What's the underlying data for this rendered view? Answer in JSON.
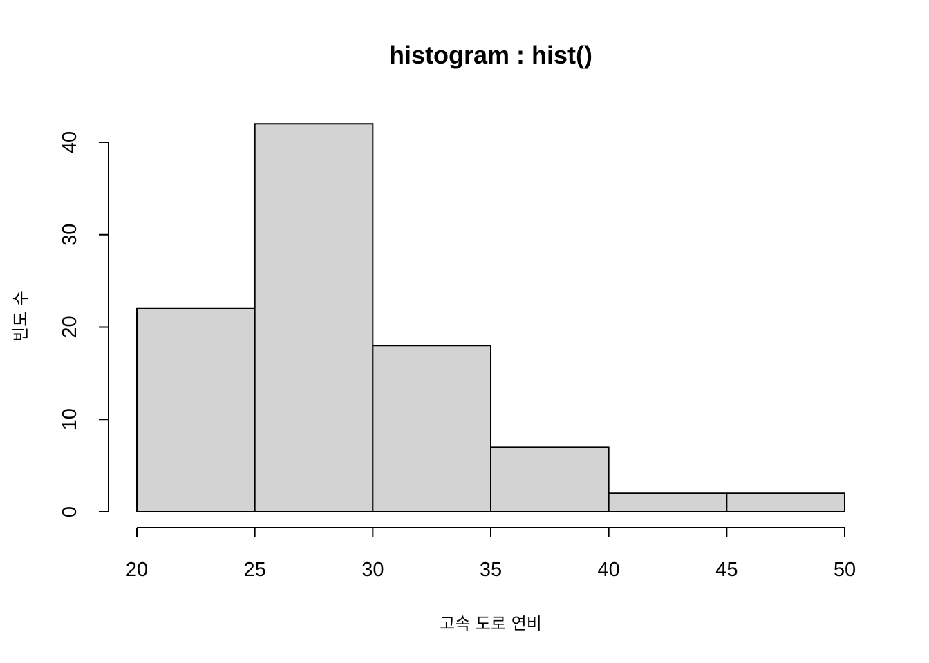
{
  "chart_data": {
    "type": "bar",
    "title": "histogram : hist()",
    "xlabel": "고속 도로 연비",
    "ylabel": "빈도 수",
    "bins": [
      {
        "from": 20,
        "to": 25,
        "count": 22
      },
      {
        "from": 25,
        "to": 30,
        "count": 42
      },
      {
        "from": 30,
        "to": 35,
        "count": 18
      },
      {
        "from": 35,
        "to": 40,
        "count": 7
      },
      {
        "from": 40,
        "to": 45,
        "count": 2
      },
      {
        "from": 45,
        "to": 50,
        "count": 2
      }
    ],
    "xlim": [
      20,
      50
    ],
    "ylim": [
      0,
      40
    ],
    "x_ticks": [
      "20",
      "25",
      "30",
      "35",
      "40",
      "45",
      "50"
    ],
    "y_ticks": [
      "0",
      "10",
      "20",
      "30",
      "40"
    ],
    "bar_color": "#d3d3d3",
    "grid": false,
    "legend": false
  }
}
